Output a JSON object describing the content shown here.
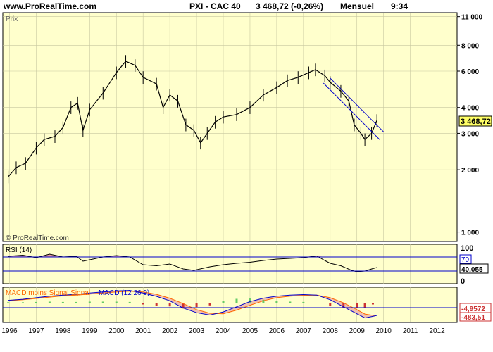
{
  "header": {
    "site": "www.ProRealTime.com",
    "instrument": "PXI - CAC 40",
    "quote": "3 468,72 (-0,26%)",
    "period": "Mensuel",
    "time": "9:34"
  },
  "price_panel": {
    "label": "Prix",
    "copyright": "© ProRealTime.com",
    "last_price_label": "3 468,72"
  },
  "rsi_panel": {
    "label": "RSI (14)",
    "value_label": "40,055",
    "level_labels": [
      "100",
      "70",
      "0"
    ]
  },
  "macd_panel": {
    "label_signal": "MACD moins Signal Signal",
    "label_macd": "MACD (12 26 9)",
    "value_labels": [
      "-4,9572",
      "-483,51"
    ]
  },
  "colors": {
    "panel_bg": "#ffffcc",
    "outer_bg": "#ffffff",
    "grid": "#c8c8a0",
    "price": "#000000",
    "channel": "#0000cc",
    "rsi_level": "#0000cc",
    "rsi_fill": "#e8a0a0",
    "macd_signal": "#ff6600",
    "macd_line": "#0000cc",
    "macd_hist_pos": "#66cc66",
    "macd_hist_neg": "#cc3333",
    "macd_fill": "#f0c0b0"
  },
  "chart_data": [
    {
      "type": "line",
      "name": "price",
      "title": "PXI - CAC 40",
      "xlabel": "",
      "ylabel": "Prix",
      "scale": "log",
      "ylim": [
        900,
        11500
      ],
      "xlim": [
        1995.75,
        2012.75
      ],
      "yticks": [
        1000,
        2000,
        3000,
        4000,
        6000,
        8000,
        11000
      ],
      "ytick_labels": [
        "1 000",
        "2 000",
        "3 000",
        "4 000",
        "6 000",
        "8 000",
        "11 000"
      ],
      "xticks": [
        1996,
        1997,
        1998,
        1999,
        2000,
        2001,
        2002,
        2003,
        2004,
        2005,
        2006,
        2007,
        2008,
        2009,
        2010,
        2011,
        2012
      ],
      "x": [
        1995.95,
        1996.25,
        1996.6,
        1997.0,
        1997.3,
        1997.7,
        1998.0,
        1998.3,
        1998.55,
        1998.75,
        1999.0,
        1999.5,
        2000.0,
        2000.35,
        2000.7,
        2001.0,
        2001.5,
        2001.75,
        2002.0,
        2002.3,
        2002.6,
        2002.9,
        2003.15,
        2003.4,
        2003.7,
        2004.0,
        2004.5,
        2005.0,
        2005.5,
        2006.0,
        2006.4,
        2006.8,
        2007.2,
        2007.45,
        2007.8,
        2008.0,
        2008.4,
        2008.7,
        2008.9,
        2009.15,
        2009.3,
        2009.55,
        2009.75
      ],
      "y": [
        1850,
        2050,
        2150,
        2550,
        2800,
        2900,
        3200,
        4000,
        4200,
        3100,
        3900,
        4700,
        5900,
        6700,
        6400,
        5600,
        5200,
        4000,
        4600,
        4300,
        3300,
        3100,
        2700,
        3000,
        3400,
        3600,
        3700,
        4000,
        4600,
        5000,
        5400,
        5600,
        5900,
        6100,
        5700,
        5300,
        4800,
        4300,
        3300,
        3000,
        2800,
        3000,
        3469
      ]
    },
    {
      "type": "line",
      "name": "channel",
      "segments": [
        {
          "x": [
            2008.0,
            2010.0
          ],
          "y": [
            5550,
            3050
          ]
        },
        {
          "x": [
            2007.75,
            2009.85
          ],
          "y": [
            5250,
            2800
          ]
        }
      ]
    },
    {
      "type": "line",
      "name": "rsi",
      "title": "RSI (14)",
      "ylim": [
        0,
        100
      ],
      "levels": [
        70,
        30
      ],
      "x": [
        1995.95,
        1996.5,
        1997.0,
        1997.5,
        1998.0,
        1998.5,
        1998.75,
        1999.0,
        1999.5,
        2000.0,
        2000.5,
        2001.0,
        2001.5,
        2002.0,
        2002.5,
        2002.9,
        2003.5,
        2004.0,
        2004.5,
        2005.0,
        2005.5,
        2006.0,
        2006.5,
        2007.0,
        2007.5,
        2007.8,
        2008.0,
        2008.4,
        2008.8,
        2009.0,
        2009.3,
        2009.6,
        2009.75
      ],
      "y": [
        72,
        75,
        68,
        78,
        70,
        72,
        58,
        62,
        70,
        74,
        70,
        48,
        45,
        50,
        36,
        32,
        42,
        48,
        52,
        55,
        60,
        64,
        66,
        68,
        73,
        60,
        52,
        45,
        32,
        28,
        30,
        37,
        40
      ]
    },
    {
      "type": "line",
      "name": "macd",
      "title": "MACD (12 26 9)",
      "ylim": [
        -700,
        550
      ],
      "x": [
        1995.95,
        1996.5,
        1997.0,
        1997.5,
        1998.0,
        1998.5,
        1999.0,
        1999.5,
        2000.0,
        2000.5,
        2001.0,
        2001.5,
        2002.0,
        2002.5,
        2003.0,
        2003.5,
        2004.0,
        2004.5,
        2005.0,
        2005.5,
        2006.0,
        2006.5,
        2007.0,
        2007.5,
        2008.0,
        2008.5,
        2009.0,
        2009.3,
        2009.6,
        2009.75
      ],
      "macd": [
        100,
        140,
        200,
        260,
        300,
        330,
        380,
        420,
        460,
        480,
        380,
        250,
        80,
        -200,
        -380,
        -470,
        -350,
        -150,
        50,
        180,
        260,
        300,
        320,
        300,
        120,
        -150,
        -420,
        -580,
        -520,
        -483.51
      ],
      "signal": [
        80,
        120,
        170,
        220,
        270,
        300,
        340,
        380,
        420,
        450,
        420,
        330,
        180,
        -30,
        -260,
        -400,
        -420,
        -280,
        -90,
        80,
        200,
        260,
        290,
        300,
        200,
        0,
        -260,
        -430,
        -480,
        -478.55
      ],
      "histogram": [
        20,
        20,
        30,
        40,
        30,
        30,
        40,
        40,
        40,
        30,
        -40,
        -80,
        -100,
        -170,
        -120,
        -70,
        70,
        130,
        140,
        100,
        60,
        40,
        30,
        0,
        -80,
        -150,
        -160,
        -150,
        -40,
        -4.9572
      ]
    }
  ]
}
